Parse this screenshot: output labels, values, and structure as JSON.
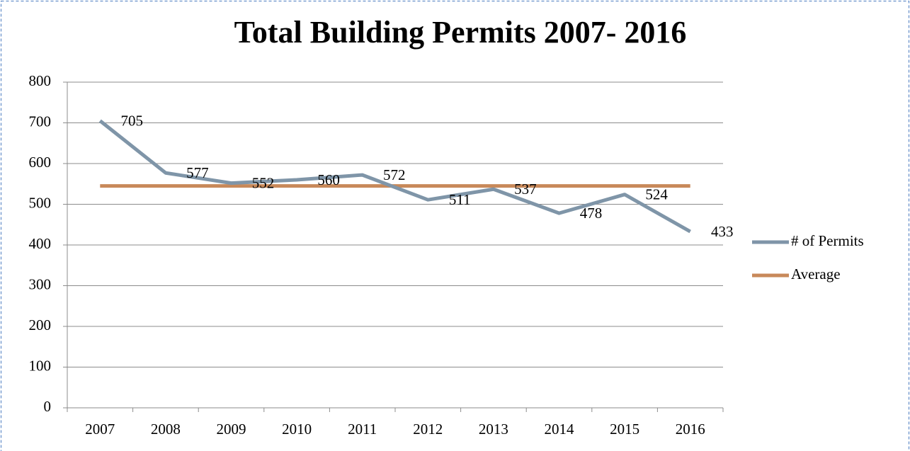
{
  "chart_data": {
    "type": "line",
    "title": "Total Building Permits 2007- 2016",
    "categories": [
      "2007",
      "2008",
      "2009",
      "2010",
      "2011",
      "2012",
      "2013",
      "2014",
      "2015",
      "2016"
    ],
    "series": [
      {
        "name": "# of Permits",
        "color": "#7f95a8",
        "values": [
          705,
          577,
          552,
          560,
          572,
          511,
          537,
          478,
          524,
          433
        ],
        "labels": true
      },
      {
        "name": "Average",
        "color": "#c8895a",
        "values": [
          545,
          545,
          545,
          545,
          545,
          545,
          545,
          545,
          545,
          545
        ]
      }
    ],
    "ylim": [
      0,
      800
    ],
    "yticks": [
      0,
      100,
      200,
      300,
      400,
      500,
      600,
      700,
      800
    ],
    "grid": true,
    "legend": "right"
  }
}
